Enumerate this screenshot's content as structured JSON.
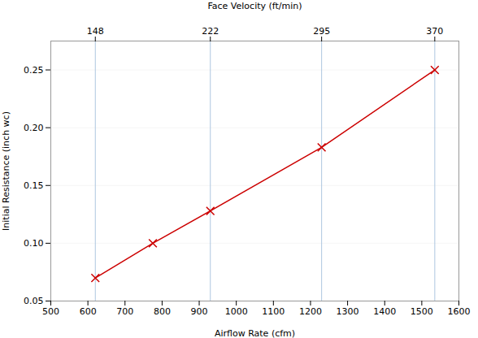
{
  "chart_data": {
    "type": "line",
    "xlabel": "Airflow Rate (cfm)",
    "ylabel": "Initial Resistance (inch wc)",
    "x": [
      620,
      775,
      930,
      1230,
      1535
    ],
    "values": [
      0.07,
      0.1,
      0.128,
      0.183,
      0.25
    ],
    "color": "#cc0000",
    "marker": "x",
    "xlim": [
      500,
      1600
    ],
    "ylim": [
      0.05,
      0.275
    ],
    "xticks": [
      500,
      600,
      700,
      800,
      900,
      1000,
      1100,
      1200,
      1300,
      1400,
      1500,
      1600
    ],
    "yticks": [
      0.05,
      {
        "value": 0.1,
        "label": "0.10"
      },
      0.15,
      {
        "value": 0.2,
        "label": "0.20"
      },
      0.25
    ],
    "x2label": "Face Velocity (ft/min)",
    "x2ticks": [
      {
        "value": 620,
        "label": "148"
      },
      {
        "value": 930,
        "label": "222"
      },
      {
        "value": 1230,
        "label": "295"
      },
      {
        "value": 1535,
        "label": "370"
      }
    ],
    "grid": true
  }
}
